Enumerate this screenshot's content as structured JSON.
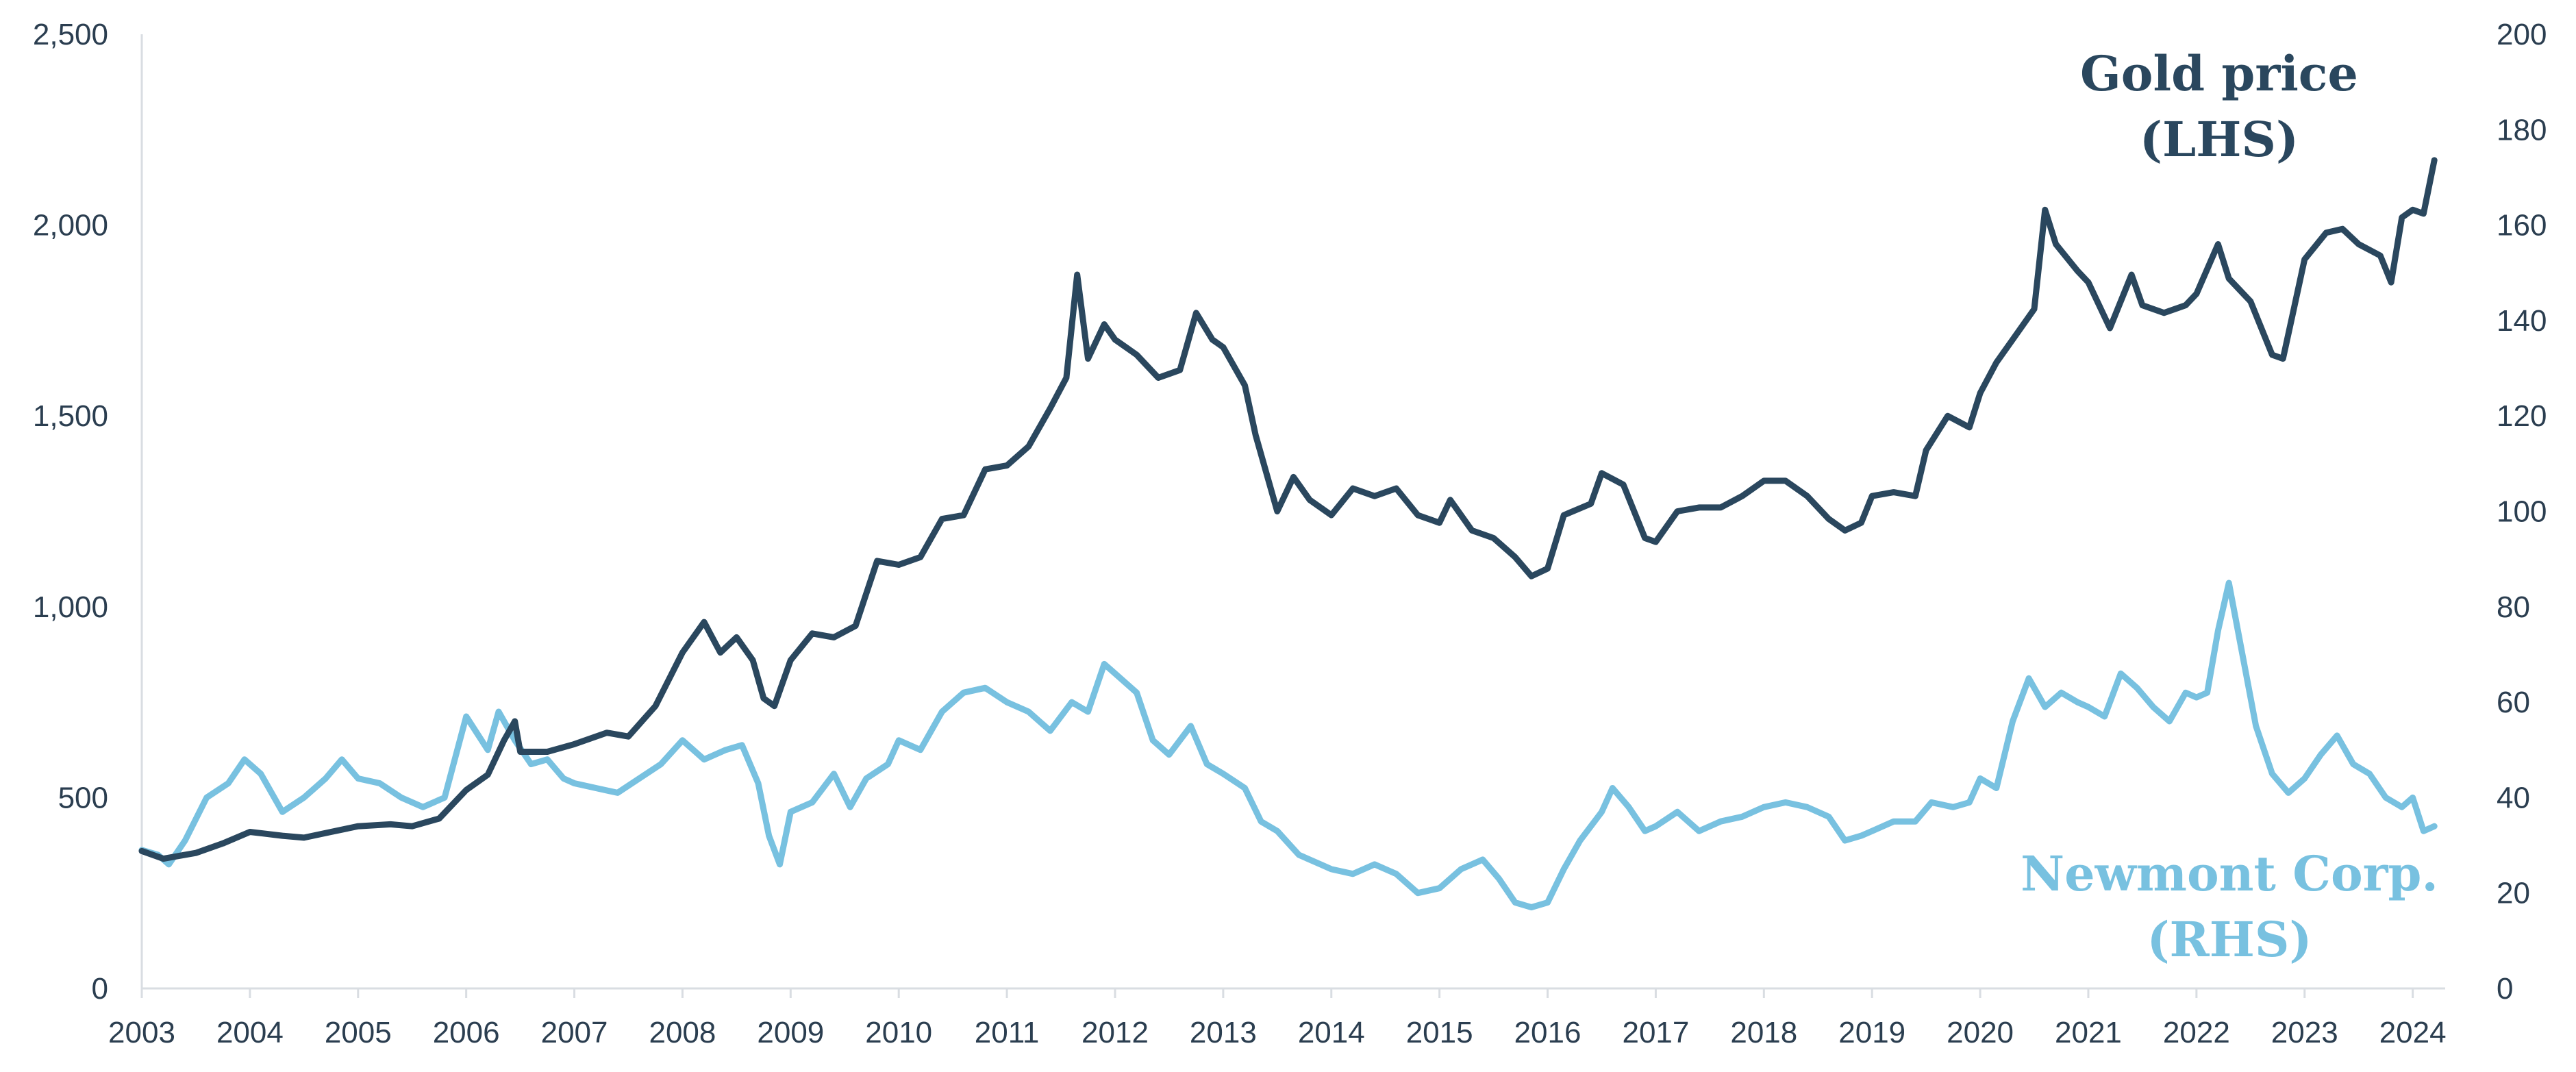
{
  "chart_data": {
    "type": "line",
    "title": "",
    "xlabel": "",
    "ylabel": "",
    "x_ticks": [
      "2003",
      "2004",
      "2005",
      "2006",
      "2007",
      "2008",
      "2009",
      "2010",
      "2011",
      "2012",
      "2013",
      "2014",
      "2015",
      "2016",
      "2017",
      "2018",
      "2019",
      "2020",
      "2021",
      "2022",
      "2023",
      "2024"
    ],
    "xlim": [
      2003,
      2024.3
    ],
    "y_left": {
      "ticks": [
        "0",
        "500",
        "1,000",
        "1,500",
        "2,000",
        "2,500"
      ],
      "range": [
        0,
        2500
      ]
    },
    "y_right": {
      "ticks": [
        "0",
        "20",
        "40",
        "60",
        "80",
        "100",
        "120",
        "140",
        "160",
        "180",
        "200"
      ],
      "range": [
        0,
        200
      ]
    },
    "grid": false,
    "colors": {
      "gold": "#2a475e",
      "newmont": "#78c1e0",
      "axis": "#d9dde2",
      "text": "#2b3e50"
    },
    "series": [
      {
        "name": "Gold price (LHS)",
        "label_lines": [
          "Gold price",
          "(LHS)"
        ],
        "axis": "left",
        "color": "#2a475e",
        "points": [
          [
            2003.0,
            360
          ],
          [
            2003.2,
            340
          ],
          [
            2003.5,
            355
          ],
          [
            2003.75,
            380
          ],
          [
            2004.0,
            410
          ],
          [
            2004.3,
            400
          ],
          [
            2004.5,
            395
          ],
          [
            2004.75,
            410
          ],
          [
            2005.0,
            425
          ],
          [
            2005.3,
            430
          ],
          [
            2005.5,
            425
          ],
          [
            2005.75,
            445
          ],
          [
            2006.0,
            520
          ],
          [
            2006.2,
            560
          ],
          [
            2006.35,
            650
          ],
          [
            2006.45,
            700
          ],
          [
            2006.5,
            620
          ],
          [
            2006.75,
            620
          ],
          [
            2007.0,
            640
          ],
          [
            2007.3,
            670
          ],
          [
            2007.5,
            660
          ],
          [
            2007.75,
            740
          ],
          [
            2008.0,
            880
          ],
          [
            2008.2,
            960
          ],
          [
            2008.35,
            880
          ],
          [
            2008.5,
            920
          ],
          [
            2008.65,
            860
          ],
          [
            2008.75,
            760
          ],
          [
            2008.85,
            740
          ],
          [
            2009.0,
            860
          ],
          [
            2009.2,
            930
          ],
          [
            2009.4,
            920
          ],
          [
            2009.6,
            950
          ],
          [
            2009.8,
            1120
          ],
          [
            2010.0,
            1110
          ],
          [
            2010.2,
            1130
          ],
          [
            2010.4,
            1230
          ],
          [
            2010.6,
            1240
          ],
          [
            2010.8,
            1360
          ],
          [
            2011.0,
            1370
          ],
          [
            2011.2,
            1420
          ],
          [
            2011.4,
            1520
          ],
          [
            2011.55,
            1600
          ],
          [
            2011.65,
            1870
          ],
          [
            2011.75,
            1650
          ],
          [
            2011.9,
            1740
          ],
          [
            2012.0,
            1700
          ],
          [
            2012.2,
            1660
          ],
          [
            2012.4,
            1600
          ],
          [
            2012.6,
            1620
          ],
          [
            2012.75,
            1770
          ],
          [
            2012.9,
            1700
          ],
          [
            2013.0,
            1680
          ],
          [
            2013.2,
            1580
          ],
          [
            2013.3,
            1450
          ],
          [
            2013.5,
            1250
          ],
          [
            2013.65,
            1340
          ],
          [
            2013.8,
            1280
          ],
          [
            2014.0,
            1240
          ],
          [
            2014.2,
            1310
          ],
          [
            2014.4,
            1290
          ],
          [
            2014.6,
            1310
          ],
          [
            2014.8,
            1240
          ],
          [
            2015.0,
            1220
          ],
          [
            2015.1,
            1280
          ],
          [
            2015.3,
            1200
          ],
          [
            2015.5,
            1180
          ],
          [
            2015.7,
            1130
          ],
          [
            2015.85,
            1080
          ],
          [
            2016.0,
            1100
          ],
          [
            2016.15,
            1240
          ],
          [
            2016.4,
            1270
          ],
          [
            2016.5,
            1350
          ],
          [
            2016.7,
            1320
          ],
          [
            2016.9,
            1180
          ],
          [
            2017.0,
            1170
          ],
          [
            2017.2,
            1250
          ],
          [
            2017.4,
            1260
          ],
          [
            2017.6,
            1260
          ],
          [
            2017.8,
            1290
          ],
          [
            2018.0,
            1330
          ],
          [
            2018.2,
            1330
          ],
          [
            2018.4,
            1290
          ],
          [
            2018.6,
            1230
          ],
          [
            2018.75,
            1200
          ],
          [
            2018.9,
            1220
          ],
          [
            2019.0,
            1290
          ],
          [
            2019.2,
            1300
          ],
          [
            2019.4,
            1290
          ],
          [
            2019.5,
            1410
          ],
          [
            2019.7,
            1500
          ],
          [
            2019.9,
            1470
          ],
          [
            2020.0,
            1560
          ],
          [
            2020.15,
            1640
          ],
          [
            2020.3,
            1700
          ],
          [
            2020.5,
            1780
          ],
          [
            2020.6,
            2040
          ],
          [
            2020.7,
            1950
          ],
          [
            2020.9,
            1880
          ],
          [
            2021.0,
            1850
          ],
          [
            2021.2,
            1730
          ],
          [
            2021.4,
            1870
          ],
          [
            2021.5,
            1790
          ],
          [
            2021.7,
            1770
          ],
          [
            2021.9,
            1790
          ],
          [
            2022.0,
            1820
          ],
          [
            2022.2,
            1950
          ],
          [
            2022.3,
            1860
          ],
          [
            2022.5,
            1800
          ],
          [
            2022.7,
            1660
          ],
          [
            2022.8,
            1650
          ],
          [
            2022.9,
            1780
          ],
          [
            2023.0,
            1910
          ],
          [
            2023.2,
            1980
          ],
          [
            2023.35,
            1990
          ],
          [
            2023.5,
            1950
          ],
          [
            2023.7,
            1920
          ],
          [
            2023.8,
            1850
          ],
          [
            2023.9,
            2020
          ],
          [
            2024.0,
            2040
          ],
          [
            2024.1,
            2030
          ],
          [
            2024.2,
            2170
          ]
        ]
      },
      {
        "name": "Newmont Corp. (RHS)",
        "label_lines": [
          "Newmont Corp.",
          "(RHS)"
        ],
        "axis": "right",
        "color": "#78c1e0",
        "points": [
          [
            2003.0,
            29
          ],
          [
            2003.15,
            28
          ],
          [
            2003.25,
            26
          ],
          [
            2003.4,
            31
          ],
          [
            2003.6,
            40
          ],
          [
            2003.8,
            43
          ],
          [
            2003.95,
            48
          ],
          [
            2004.1,
            45
          ],
          [
            2004.3,
            37
          ],
          [
            2004.5,
            40
          ],
          [
            2004.7,
            44
          ],
          [
            2004.85,
            48
          ],
          [
            2005.0,
            44
          ],
          [
            2005.2,
            43
          ],
          [
            2005.4,
            40
          ],
          [
            2005.6,
            38
          ],
          [
            2005.8,
            40
          ],
          [
            2006.0,
            57
          ],
          [
            2006.2,
            50
          ],
          [
            2006.3,
            58
          ],
          [
            2006.45,
            52
          ],
          [
            2006.6,
            47
          ],
          [
            2006.75,
            48
          ],
          [
            2006.9,
            44
          ],
          [
            2007.0,
            43
          ],
          [
            2007.2,
            42
          ],
          [
            2007.4,
            41
          ],
          [
            2007.6,
            44
          ],
          [
            2007.8,
            47
          ],
          [
            2008.0,
            52
          ],
          [
            2008.2,
            48
          ],
          [
            2008.4,
            50
          ],
          [
            2008.55,
            51
          ],
          [
            2008.7,
            43
          ],
          [
            2008.8,
            32
          ],
          [
            2008.9,
            26
          ],
          [
            2009.0,
            37
          ],
          [
            2009.2,
            39
          ],
          [
            2009.4,
            45
          ],
          [
            2009.55,
            38
          ],
          [
            2009.7,
            44
          ],
          [
            2009.9,
            47
          ],
          [
            2010.0,
            52
          ],
          [
            2010.2,
            50
          ],
          [
            2010.4,
            58
          ],
          [
            2010.6,
            62
          ],
          [
            2010.8,
            63
          ],
          [
            2011.0,
            60
          ],
          [
            2011.2,
            58
          ],
          [
            2011.4,
            54
          ],
          [
            2011.6,
            60
          ],
          [
            2011.75,
            58
          ],
          [
            2011.9,
            68
          ],
          [
            2012.0,
            66
          ],
          [
            2012.2,
            62
          ],
          [
            2012.35,
            52
          ],
          [
            2012.5,
            49
          ],
          [
            2012.7,
            55
          ],
          [
            2012.85,
            47
          ],
          [
            2013.0,
            45
          ],
          [
            2013.2,
            42
          ],
          [
            2013.35,
            35
          ],
          [
            2013.5,
            33
          ],
          [
            2013.7,
            28
          ],
          [
            2013.9,
            26
          ],
          [
            2014.0,
            25
          ],
          [
            2014.2,
            24
          ],
          [
            2014.4,
            26
          ],
          [
            2014.6,
            24
          ],
          [
            2014.8,
            20
          ],
          [
            2015.0,
            21
          ],
          [
            2015.2,
            25
          ],
          [
            2015.4,
            27
          ],
          [
            2015.55,
            23
          ],
          [
            2015.7,
            18
          ],
          [
            2015.85,
            17
          ],
          [
            2016.0,
            18
          ],
          [
            2016.15,
            25
          ],
          [
            2016.3,
            31
          ],
          [
            2016.5,
            37
          ],
          [
            2016.6,
            42
          ],
          [
            2016.75,
            38
          ],
          [
            2016.9,
            33
          ],
          [
            2017.0,
            34
          ],
          [
            2017.2,
            37
          ],
          [
            2017.4,
            33
          ],
          [
            2017.6,
            35
          ],
          [
            2017.8,
            36
          ],
          [
            2018.0,
            38
          ],
          [
            2018.2,
            39
          ],
          [
            2018.4,
            38
          ],
          [
            2018.6,
            36
          ],
          [
            2018.75,
            31
          ],
          [
            2018.9,
            32
          ],
          [
            2019.0,
            33
          ],
          [
            2019.2,
            35
          ],
          [
            2019.4,
            35
          ],
          [
            2019.55,
            39
          ],
          [
            2019.75,
            38
          ],
          [
            2019.9,
            39
          ],
          [
            2020.0,
            44
          ],
          [
            2020.15,
            42
          ],
          [
            2020.3,
            56
          ],
          [
            2020.45,
            65
          ],
          [
            2020.6,
            59
          ],
          [
            2020.75,
            62
          ],
          [
            2020.9,
            60
          ],
          [
            2021.0,
            59
          ],
          [
            2021.15,
            57
          ],
          [
            2021.3,
            66
          ],
          [
            2021.45,
            63
          ],
          [
            2021.6,
            59
          ],
          [
            2021.75,
            56
          ],
          [
            2021.9,
            62
          ],
          [
            2022.0,
            61
          ],
          [
            2022.1,
            62
          ],
          [
            2022.2,
            75
          ],
          [
            2022.3,
            85
          ],
          [
            2022.45,
            67
          ],
          [
            2022.55,
            55
          ],
          [
            2022.7,
            45
          ],
          [
            2022.85,
            41
          ],
          [
            2023.0,
            44
          ],
          [
            2023.15,
            49
          ],
          [
            2023.3,
            53
          ],
          [
            2023.45,
            47
          ],
          [
            2023.6,
            45
          ],
          [
            2023.75,
            40
          ],
          [
            2023.9,
            38
          ],
          [
            2024.0,
            40
          ],
          [
            2024.1,
            33
          ],
          [
            2024.2,
            34
          ]
        ]
      }
    ]
  }
}
